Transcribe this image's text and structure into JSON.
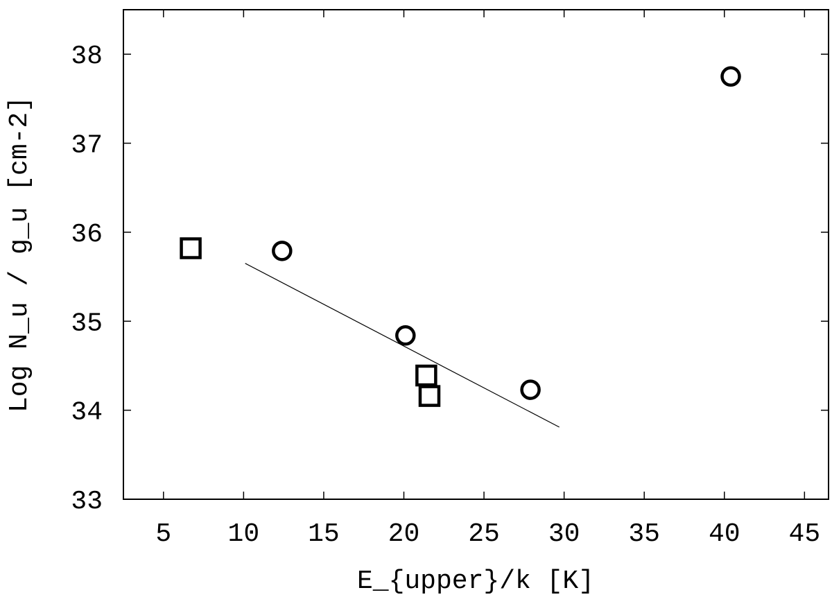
{
  "chart_data": {
    "type": "scatter",
    "title": "",
    "xlabel": "E_{upper}/k [K]",
    "ylabel": "Log N_u / g_u [cm-2]",
    "xlim": [
      2.5,
      46.5
    ],
    "ylim": [
      33,
      38.5
    ],
    "xticks": [
      5,
      10,
      15,
      20,
      25,
      30,
      35,
      40,
      45
    ],
    "yticks": [
      33,
      34,
      35,
      36,
      37,
      38
    ],
    "grid": false,
    "legend": "none",
    "series": [
      {
        "marker": "circle",
        "points": [
          {
            "x": 12.4,
            "y": 35.79
          },
          {
            "x": 20.1,
            "y": 34.84
          },
          {
            "x": 27.9,
            "y": 34.23
          },
          {
            "x": 40.4,
            "y": 37.75
          }
        ]
      },
      {
        "marker": "square",
        "points": [
          {
            "x": 6.7,
            "y": 35.82
          },
          {
            "x": 21.4,
            "y": 34.39
          },
          {
            "x": 21.6,
            "y": 34.16
          }
        ]
      }
    ],
    "fit_line": {
      "x": [
        10.1,
        29.7
      ],
      "y": [
        35.65,
        33.81
      ]
    }
  }
}
